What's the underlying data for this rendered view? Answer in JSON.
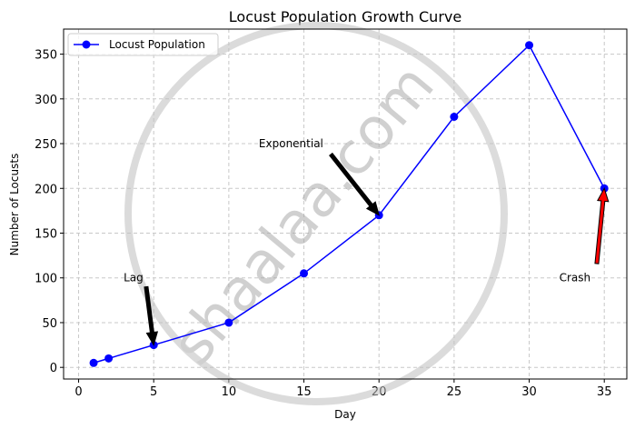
{
  "chart_data": {
    "type": "line",
    "title": "Locust Population Growth Curve",
    "xlabel": "Day",
    "ylabel": "Number of Locusts",
    "xlim": [
      -1,
      36.5
    ],
    "ylim": [
      -13,
      378
    ],
    "xticks": [
      0,
      5,
      10,
      15,
      20,
      25,
      30,
      35
    ],
    "yticks": [
      0,
      50,
      100,
      150,
      200,
      250,
      300,
      350
    ],
    "grid": true,
    "legend_position": "top-left",
    "series": [
      {
        "name": "Locust Population",
        "color": "#0000ff",
        "marker": "circle",
        "x": [
          1,
          2,
          5,
          10,
          15,
          20,
          25,
          30,
          35
        ],
        "y": [
          5,
          10,
          25,
          50,
          105,
          170,
          280,
          360,
          200
        ]
      }
    ],
    "annotations": [
      {
        "text": "Lag",
        "text_at": [
          3,
          100
        ],
        "arrow_from": [
          4.5,
          90
        ],
        "arrow_to": [
          5,
          25
        ],
        "color": "#000000"
      },
      {
        "text": "Exponential",
        "text_at": [
          12,
          250
        ],
        "arrow_from": [
          16.8,
          238
        ],
        "arrow_to": [
          20,
          170
        ],
        "color": "#000000"
      },
      {
        "text": "Crash",
        "text_at": [
          32,
          100
        ],
        "arrow_from": [
          34.5,
          116
        ],
        "arrow_to": [
          35,
          200
        ],
        "color": "#ff0000"
      }
    ]
  },
  "watermark": {
    "text": "shaalaa.com"
  }
}
